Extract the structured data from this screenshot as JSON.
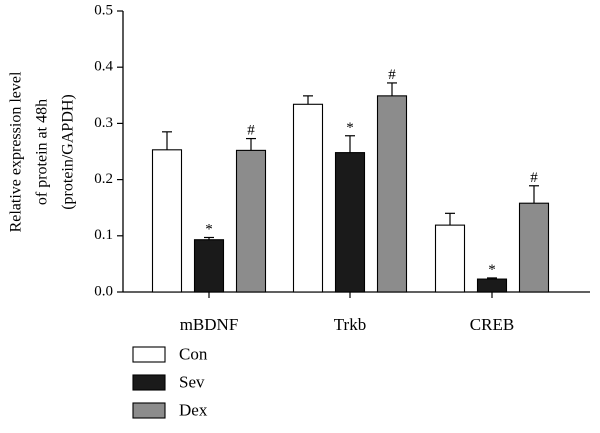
{
  "chart_data": {
    "type": "bar",
    "title": "",
    "xlabel": "",
    "ylabel_lines": [
      "Relative expression level",
      "of protein at 48h",
      "(protein/GAPDH)"
    ],
    "ylim": [
      0,
      0.5
    ],
    "yticks": [
      "0.0",
      "0.1",
      "0.2",
      "0.3",
      "0.4",
      "0.5"
    ],
    "grid": false,
    "legend_position": "bottom-left",
    "categories": [
      "mBDNF",
      "Trkb",
      "CREB"
    ],
    "series": [
      {
        "name": "Con",
        "color": "#ffffff",
        "values": [
          0.253,
          0.334,
          0.119
        ],
        "errors": [
          0.032,
          0.015,
          0.021
        ],
        "marks": [
          "",
          "",
          ""
        ]
      },
      {
        "name": "Sev",
        "color": "#1a1a1a",
        "values": [
          0.093,
          0.248,
          0.023
        ],
        "errors": [
          0.004,
          0.03,
          0.002
        ],
        "marks": [
          "*",
          "*",
          "*"
        ]
      },
      {
        "name": "Dex",
        "color": "#8c8c8c",
        "values": [
          0.252,
          0.349,
          0.158
        ],
        "errors": [
          0.021,
          0.023,
          0.031
        ],
        "marks": [
          "#",
          "#",
          "#"
        ]
      }
    ]
  }
}
